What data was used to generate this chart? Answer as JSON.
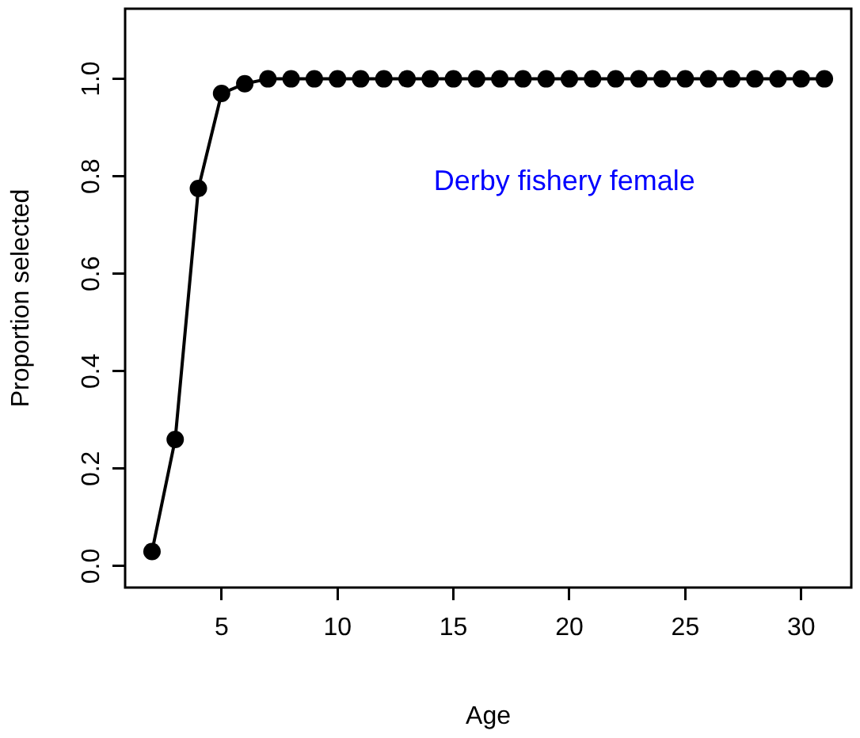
{
  "chart_data": {
    "type": "line",
    "xlabel": "Age",
    "ylabel": "Proportion selected",
    "annotations": [
      "Derby fishery female"
    ],
    "x": [
      2,
      3,
      4,
      5,
      6,
      7,
      8,
      9,
      10,
      11,
      12,
      13,
      14,
      15,
      16,
      17,
      18,
      19,
      20,
      21,
      22,
      23,
      24,
      25,
      26,
      27,
      28,
      29,
      30,
      31
    ],
    "series": [
      {
        "color": "#000000",
        "values": [
          0.03,
          0.26,
          0.775,
          0.97,
          0.99,
          1,
          1,
          1,
          1,
          1,
          1,
          1,
          1,
          1,
          1,
          1,
          1,
          1,
          1,
          1,
          1,
          1,
          1,
          1,
          1,
          1,
          1,
          1,
          1,
          1
        ]
      }
    ],
    "xlim": [
      0.84,
      32.16
    ],
    "ylim": [
      -0.044,
      1.144
    ],
    "xticks": [
      5,
      10,
      15,
      20,
      25,
      30
    ],
    "yticks": [
      {
        "value": 0,
        "label": "0.0"
      },
      0.2,
      0.4,
      0.6,
      0.8,
      {
        "value": 1,
        "label": "1.0"
      }
    ],
    "marker": "circle",
    "line_style": "solid",
    "grid": false,
    "legend": false
  }
}
